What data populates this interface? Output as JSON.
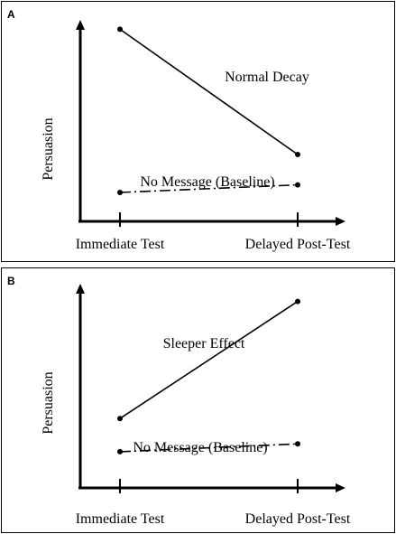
{
  "chart_data": [
    {
      "type": "line",
      "panel_label": "A",
      "ylabel": "Persuasion",
      "categories": [
        "Immediate Test",
        "Delayed Post-Test"
      ],
      "ylim": [
        0,
        100
      ],
      "series": [
        {
          "name": "Normal Decay",
          "values": [
            96,
            30
          ],
          "style": "solid"
        },
        {
          "name": "No Message (Baseline)",
          "values": [
            10,
            14
          ],
          "style": "dash-dot"
        }
      ]
    },
    {
      "type": "line",
      "panel_label": "B",
      "ylabel": "Persuasion",
      "categories": [
        "Immediate Test",
        "Delayed Post-Test"
      ],
      "ylim": [
        0,
        100
      ],
      "series": [
        {
          "name": "Sleeper Effect",
          "values": [
            30,
            90
          ],
          "style": "solid"
        },
        {
          "name": "No Message (Baseline)",
          "values": [
            13,
            17
          ],
          "style": "dash-dot"
        }
      ]
    }
  ]
}
